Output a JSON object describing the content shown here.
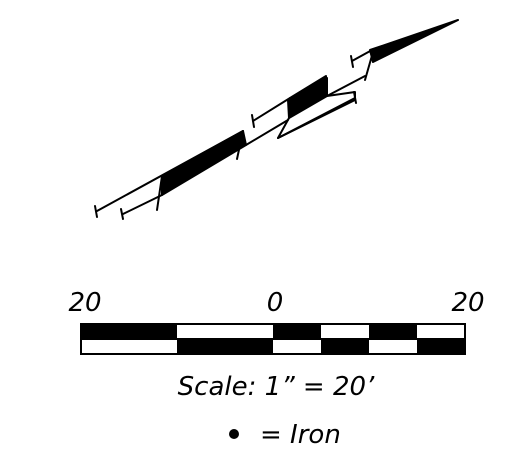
{
  "diagram": {
    "type": "survey plat fragment",
    "colors": {
      "ink": "#000000",
      "paper": "#ffffff"
    }
  },
  "scale_bar": {
    "left_label": "20",
    "center_label": "0",
    "right_label": "20",
    "scale_text": "Scale: 1” = 20’",
    "legend_symbol": "•",
    "legend_text": "= Iron"
  }
}
